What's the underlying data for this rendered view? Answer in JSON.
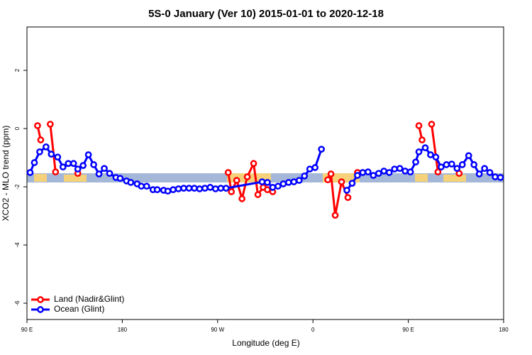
{
  "chart_data": {
    "type": "line",
    "title": "5S-0 January (Ver 10)   2015-01-01 to 2020-12-18",
    "x_label": "Longitude (deg E)",
    "y_label": "XCO2 - MLO trend (ppm)",
    "xlim": [
      90,
      540
    ],
    "ylim": [
      -6.56,
      3.49
    ],
    "xticks": [
      {
        "value": 90,
        "label": "90 E"
      },
      180,
      {
        "value": 270,
        "label": "90 W"
      },
      {
        "value": 360,
        "label": "0"
      },
      {
        "value": 450,
        "label": "90 E"
      },
      {
        "value": 540,
        "label": "180"
      }
    ],
    "yticks": [
      -6,
      -4,
      -2,
      0,
      2
    ],
    "legend": "bottom-left",
    "series": [
      {
        "name": "Land (Nadir&Glint)",
        "color": "#ff0000",
        "x": [
          100,
          103,
          null,
          112,
          117,
          null,
          138,
          null,
          280,
          283,
          288,
          293,
          298,
          304,
          308,
          313,
          317,
          322,
          null,
          374,
          377,
          381,
          387,
          393,
          null,
          402,
          null,
          460,
          463,
          null,
          472,
          478,
          null,
          498
        ],
        "values": [
          0.1,
          -0.39,
          null,
          0.15,
          -1.49,
          null,
          -1.54,
          null,
          -1.51,
          -2.17,
          -1.78,
          -2.41,
          -1.66,
          -1.2,
          -2.27,
          -2.02,
          -2.1,
          -2.17,
          null,
          -1.76,
          -1.56,
          -2.98,
          -1.83,
          -2.37,
          null,
          -1.51,
          null,
          0.1,
          -0.39,
          null,
          0.15,
          -1.49,
          null,
          -1.54
        ]
      },
      {
        "name": "Ocean (Glint)",
        "color": "#0000ff",
        "x": [
          93,
          97,
          102,
          108,
          113,
          119,
          124,
          129,
          134,
          138,
          143,
          148,
          153,
          158,
          163,
          168,
          174,
          178,
          184,
          188,
          194,
          198,
          203,
          209,
          213,
          219,
          223,
          228,
          233,
          238,
          243,
          248,
          253,
          258,
          263,
          268,
          273,
          278,
          312,
          317,
          322,
          327,
          332,
          337,
          342,
          347,
          352,
          357,
          362,
          368,
          null,
          392,
          397,
          402,
          407,
          412,
          417,
          422,
          427,
          432,
          437,
          442,
          447,
          452,
          457,
          460,
          466,
          471,
          476,
          481,
          486,
          491,
          496,
          501,
          507,
          512,
          517,
          522,
          527,
          532,
          537
        ],
        "values": [
          -1.51,
          -1.17,
          -0.8,
          -0.63,
          -0.88,
          -0.98,
          -1.32,
          -1.2,
          -1.2,
          -1.39,
          -1.27,
          -0.9,
          -1.24,
          -1.56,
          -1.37,
          -1.54,
          -1.68,
          -1.71,
          -1.8,
          -1.85,
          -1.9,
          -1.98,
          -1.98,
          -2.1,
          -2.1,
          -2.12,
          -2.15,
          -2.1,
          -2.07,
          -2.05,
          -2.05,
          -2.05,
          -2.07,
          -2.05,
          -2.02,
          -2.07,
          -2.05,
          -2.05,
          -1.83,
          -1.85,
          -2.02,
          -1.98,
          -1.9,
          -1.85,
          -1.83,
          -1.78,
          -1.63,
          -1.39,
          -1.34,
          -0.71,
          null,
          -2.12,
          -1.88,
          -1.61,
          -1.51,
          -1.49,
          -1.61,
          -1.54,
          -1.46,
          -1.51,
          -1.39,
          -1.37,
          -1.46,
          -1.49,
          -1.15,
          -0.8,
          -0.66,
          -0.9,
          -0.98,
          -1.32,
          -1.24,
          -1.22,
          -1.37,
          -1.24,
          -0.93,
          -1.24,
          -1.56,
          -1.37,
          -1.51,
          -1.66,
          -1.68
        ]
      }
    ]
  }
}
